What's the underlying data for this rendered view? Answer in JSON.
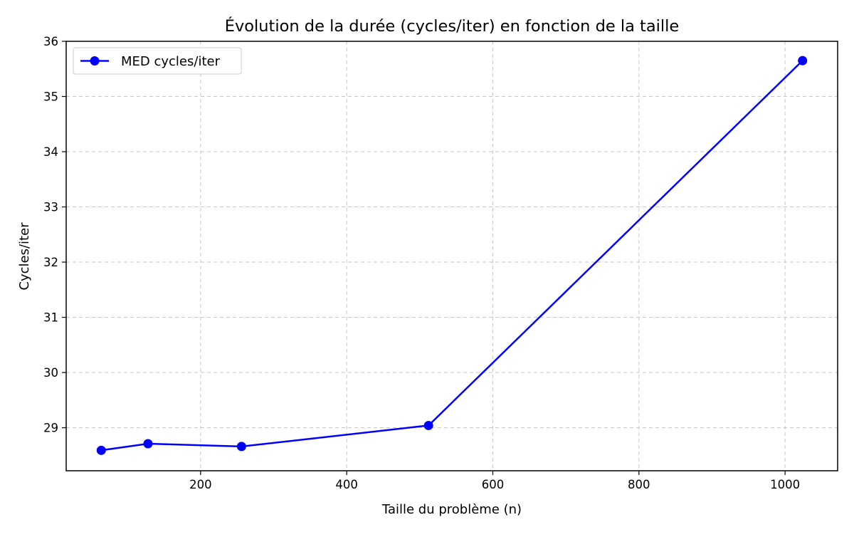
{
  "chart_data": {
    "type": "line",
    "title": "Évolution de la durée (cycles/iter) en fonction de la taille",
    "xlabel": "Taille du problème (n)",
    "ylabel": "Cycles/iter",
    "xlim": [
      16,
      1072
    ],
    "ylim": [
      28.22,
      36
    ],
    "xticks": [
      200,
      400,
      600,
      800,
      1000
    ],
    "yticks": [
      29,
      30,
      31,
      32,
      33,
      34,
      35,
      36
    ],
    "grid": true,
    "legend_position": "upper-left",
    "series": [
      {
        "name": "MED cycles/iter",
        "color": "#0000ff",
        "marker": "circle",
        "x": [
          64,
          128,
          256,
          512,
          1024
        ],
        "y": [
          28.59,
          28.71,
          28.66,
          29.04,
          35.65
        ]
      }
    ]
  }
}
